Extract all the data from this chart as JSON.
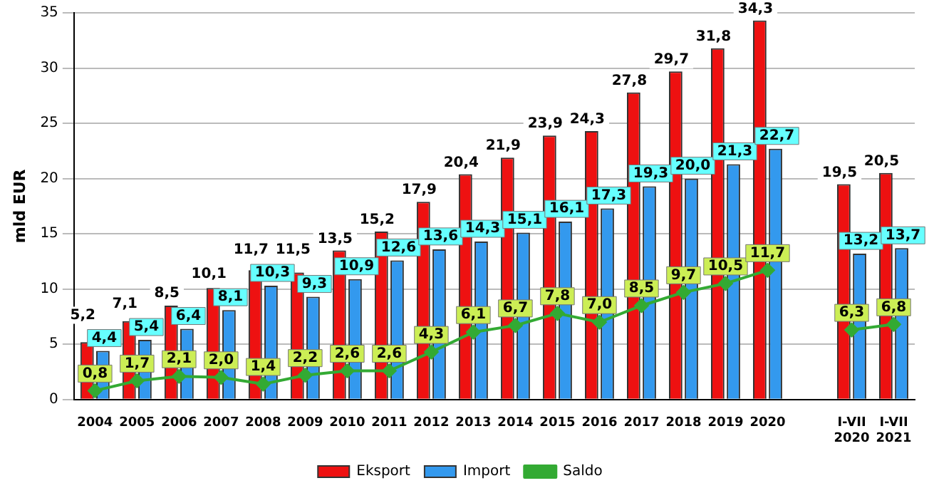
{
  "chart_data": {
    "type": "bar",
    "ylabel": "mld EUR",
    "categories": [
      "2004",
      "2005",
      "2006",
      "2007",
      "2008",
      "2009",
      "2010",
      "2011",
      "2012",
      "2013",
      "2014",
      "2015",
      "2016",
      "2017",
      "2018",
      "2019",
      "2020",
      null,
      "I-VII 2020",
      "I-VII 2021"
    ],
    "series": [
      {
        "name": "Eksport",
        "color": "#ee1111",
        "values": [
          5.2,
          7.1,
          8.5,
          10.1,
          11.7,
          11.5,
          13.5,
          15.2,
          17.9,
          20.4,
          21.9,
          23.9,
          24.3,
          27.8,
          29.7,
          31.8,
          34.3,
          null,
          19.5,
          20.5
        ],
        "value_labels": [
          "5,2",
          "7,1",
          "8,5",
          "10,1",
          "11,7",
          "11,5",
          "13,5",
          "15,2",
          "17,9",
          "20,4",
          "21,9",
          "23,9",
          "24,3",
          "27,8",
          "29,7",
          "31,8",
          "34,3",
          null,
          "19,5",
          "20,5"
        ]
      },
      {
        "name": "Import",
        "color": "#3399ee",
        "values": [
          4.4,
          5.4,
          6.4,
          8.1,
          10.3,
          9.3,
          10.9,
          12.6,
          13.6,
          14.3,
          15.1,
          16.1,
          17.3,
          19.3,
          20.0,
          21.3,
          22.7,
          null,
          13.2,
          13.7
        ],
        "value_labels": [
          "4,4",
          "5,4",
          "6,4",
          "8,1",
          "10,3",
          "9,3",
          "10,9",
          "12,6",
          "13,6",
          "14,3",
          "15,1",
          "16,1",
          "17,3",
          "19,3",
          "20,0",
          "21,3",
          "22,7",
          null,
          "13,2",
          "13,7"
        ]
      },
      {
        "name": "Saldo",
        "type": "line",
        "color": "#33aa33",
        "values": [
          0.8,
          1.7,
          2.1,
          2.0,
          1.4,
          2.2,
          2.6,
          2.6,
          4.3,
          6.1,
          6.7,
          7.8,
          7.0,
          8.5,
          9.7,
          10.5,
          11.7,
          null,
          6.3,
          6.8
        ],
        "value_labels": [
          "0,8",
          "1,7",
          "2,1",
          "2,0",
          "1,4",
          "2,2",
          "2,6",
          "2,6",
          "4,3",
          "6,1",
          "6,7",
          "7,8",
          "7,0",
          "8,5",
          "9,7",
          "10,5",
          "11,7",
          null,
          "6,3",
          "6,8"
        ]
      }
    ],
    "ylim": [
      0,
      35
    ],
    "yticks": [
      0,
      5,
      10,
      15,
      20,
      25,
      30,
      35
    ],
    "grid": "y",
    "legend": "bottom",
    "marker": "diamond"
  }
}
